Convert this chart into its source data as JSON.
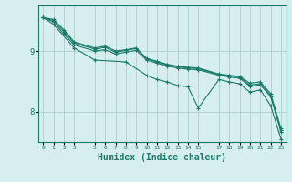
{
  "background_color": "#d6eeee",
  "grid_color": "#b0cece",
  "line_color": "#1a7a6a",
  "xlabel": "Humidex (Indice chaleur)",
  "xlabel_fontsize": 7,
  "ytick_labels": [
    "8",
    "9"
  ],
  "series": [
    {
      "x": [
        0,
        1,
        2,
        3,
        5,
        6,
        7,
        8,
        9,
        10,
        11,
        12,
        13,
        14,
        15,
        17,
        18,
        19,
        20,
        21,
        22,
        23
      ],
      "y": [
        9.55,
        9.52,
        9.35,
        9.15,
        9.05,
        9.08,
        9.0,
        9.02,
        9.05,
        8.88,
        8.83,
        8.78,
        8.75,
        8.73,
        8.72,
        8.62,
        8.6,
        8.58,
        8.47,
        8.49,
        8.3,
        7.72
      ]
    },
    {
      "x": [
        0,
        1,
        2,
        3,
        5,
        6,
        7,
        8,
        9,
        10,
        11,
        12,
        13,
        14,
        15,
        17,
        18,
        19,
        20,
        21,
        22,
        23
      ],
      "y": [
        9.55,
        9.5,
        9.32,
        9.13,
        9.03,
        9.06,
        8.98,
        9.01,
        9.04,
        8.87,
        8.82,
        8.77,
        8.74,
        8.72,
        8.71,
        8.61,
        8.59,
        8.57,
        8.44,
        8.46,
        8.27,
        7.7
      ]
    },
    {
      "x": [
        0,
        1,
        2,
        3,
        5,
        6,
        7,
        8,
        9,
        10,
        11,
        12,
        13,
        14,
        15,
        17,
        18,
        19,
        20,
        21,
        22,
        23
      ],
      "y": [
        9.55,
        9.48,
        9.28,
        9.1,
        9.0,
        9.02,
        8.95,
        8.98,
        9.01,
        8.85,
        8.8,
        8.75,
        8.72,
        8.7,
        8.69,
        8.6,
        8.57,
        8.55,
        8.42,
        8.44,
        8.25,
        7.67
      ]
    },
    {
      "x": [
        0,
        1,
        3,
        5,
        8,
        10,
        11,
        12,
        13,
        14,
        15,
        17,
        18,
        19,
        20,
        21,
        22,
        23
      ],
      "y": [
        9.55,
        9.44,
        9.05,
        8.85,
        8.82,
        8.6,
        8.53,
        8.49,
        8.43,
        8.41,
        8.06,
        8.53,
        8.49,
        8.46,
        8.32,
        8.36,
        8.1,
        7.55
      ]
    }
  ],
  "ylim": [
    7.5,
    9.75
  ],
  "xlim": [
    -0.5,
    23.5
  ],
  "yticks": [
    8.0,
    9.0
  ],
  "xtick_positions": [
    0,
    1,
    2,
    3,
    5,
    6,
    7,
    8,
    9,
    10,
    11,
    12,
    13,
    14,
    15,
    17,
    18,
    19,
    20,
    21,
    22,
    23
  ],
  "xtick_labels": [
    "0",
    "1",
    "2",
    "3",
    "5",
    "6",
    "7",
    "8",
    "9",
    "10",
    "11",
    "12",
    "13",
    "14",
    "15",
    "17",
    "18",
    "19",
    "20",
    "21",
    "22",
    "23"
  ],
  "figsize": [
    3.2,
    2.0
  ],
  "dpi": 100
}
